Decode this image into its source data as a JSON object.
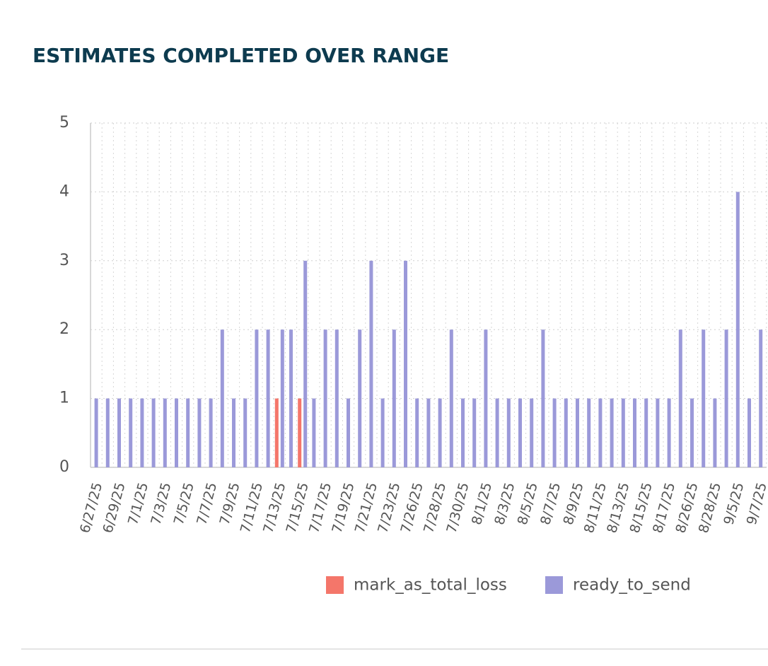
{
  "chart_data": {
    "type": "bar",
    "title": "ESTIMATES COMPLETED OVER RANGE",
    "categories": [
      "6/27/25",
      null,
      "6/29/25",
      null,
      "7/1/25",
      null,
      "7/3/25",
      null,
      "7/5/25",
      null,
      "7/7/25",
      null,
      "7/9/25",
      null,
      "7/11/25",
      null,
      "7/13/25",
      null,
      "7/15/25",
      null,
      "7/17/25",
      null,
      "7/19/25",
      null,
      "7/21/25",
      null,
      "7/23/25",
      null,
      "7/26/25",
      null,
      "7/28/25",
      null,
      "7/30/25",
      null,
      "8/1/25",
      null,
      "8/3/25",
      null,
      "8/5/25",
      null,
      "8/7/25",
      null,
      "8/9/25",
      null,
      "8/11/25",
      null,
      "8/13/25",
      null,
      "8/15/25",
      null,
      "8/17/25",
      null,
      "8/26/25",
      null,
      "8/28/25",
      null,
      "9/5/25",
      null,
      "9/7/25"
    ],
    "series": [
      {
        "name": "mark_as_total_loss",
        "color": "#f4766a",
        "values": [
          null,
          null,
          null,
          null,
          null,
          null,
          null,
          null,
          null,
          null,
          null,
          null,
          null,
          null,
          null,
          null,
          1,
          null,
          1,
          null,
          null,
          null,
          null,
          null,
          null,
          null,
          null,
          null,
          null,
          null,
          null,
          null,
          null,
          null,
          null,
          null,
          null,
          null,
          null,
          null,
          null,
          null,
          null,
          null,
          null,
          null,
          null,
          null,
          null,
          null,
          null,
          null,
          null,
          null,
          null,
          null,
          null,
          null,
          null
        ]
      },
      {
        "name": "ready_to_send",
        "color": "#9b99d9",
        "values": [
          1,
          1,
          1,
          1,
          1,
          1,
          1,
          1,
          1,
          1,
          1,
          2,
          1,
          1,
          2,
          2,
          2,
          2,
          3,
          1,
          2,
          2,
          1,
          2,
          3,
          1,
          2,
          3,
          1,
          1,
          1,
          2,
          1,
          1,
          2,
          1,
          1,
          1,
          1,
          2,
          1,
          1,
          1,
          1,
          1,
          1,
          1,
          1,
          1,
          1,
          1,
          2,
          1,
          2,
          1,
          2,
          4,
          1,
          2
        ]
      }
    ],
    "ylim": [
      0,
      5
    ],
    "yticks": [
      0,
      1,
      2,
      3,
      4,
      5
    ],
    "grid": true,
    "legend": "bottom"
  }
}
